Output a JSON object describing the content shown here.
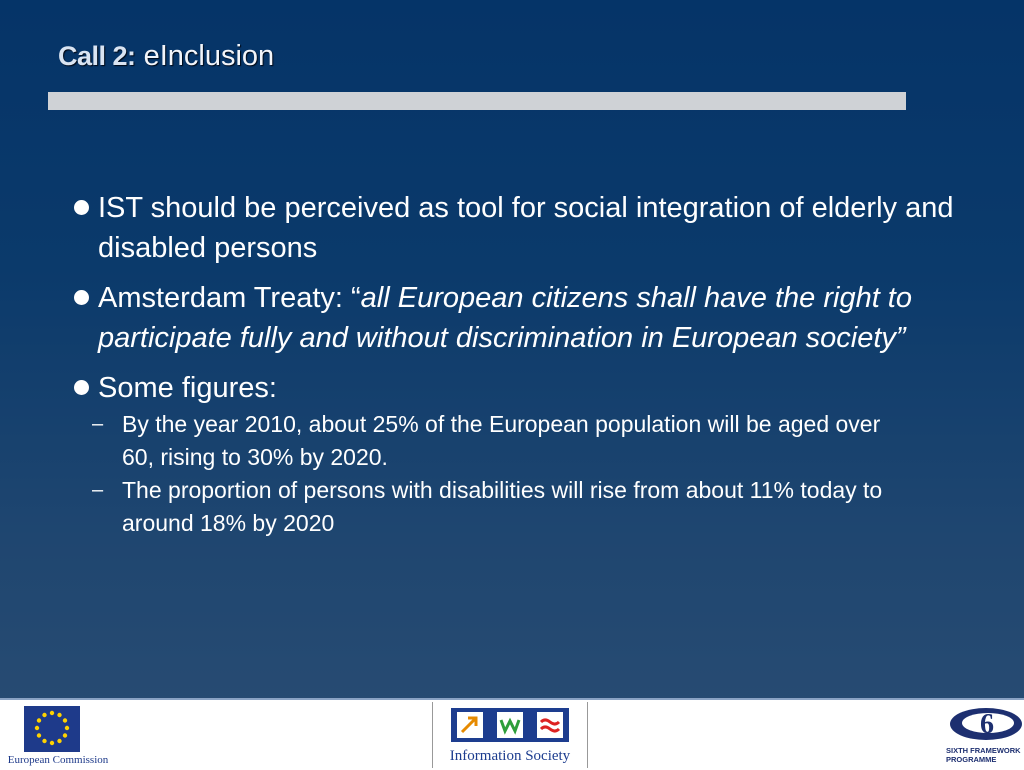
{
  "title": {
    "prefix": "Call 2:",
    "subtitle": "eInclusion"
  },
  "bullets": [
    {
      "text": "IST should be perceived as tool for social integration of elderly and disabled persons"
    },
    {
      "lead": "Amsterdam Treaty: “",
      "quote": "all European citizens shall have the right to participate fully and without discrimination in European society”"
    },
    {
      "text": "Some figures:"
    }
  ],
  "subitems": [
    {
      "dash": "–",
      "text": "By the year 2010, about 25% of the European population will be aged over 60, rising to 30% by 2020."
    },
    {
      "dash": "–",
      "text": "The proportion of persons with disabilities will rise from about 11% today to around 18% by 2020"
    }
  ],
  "footer": {
    "ec_label": "European Commission",
    "is_label": "Information Society",
    "fp_label": "SIXTH FRAMEWORK\nPROGRAMME"
  },
  "colors": {
    "background_top": "#053468",
    "background_bottom": "#2a4d73",
    "rule": "#cfd2d6",
    "text": "#ffffff",
    "logo_blue": "#1d3d8f"
  }
}
